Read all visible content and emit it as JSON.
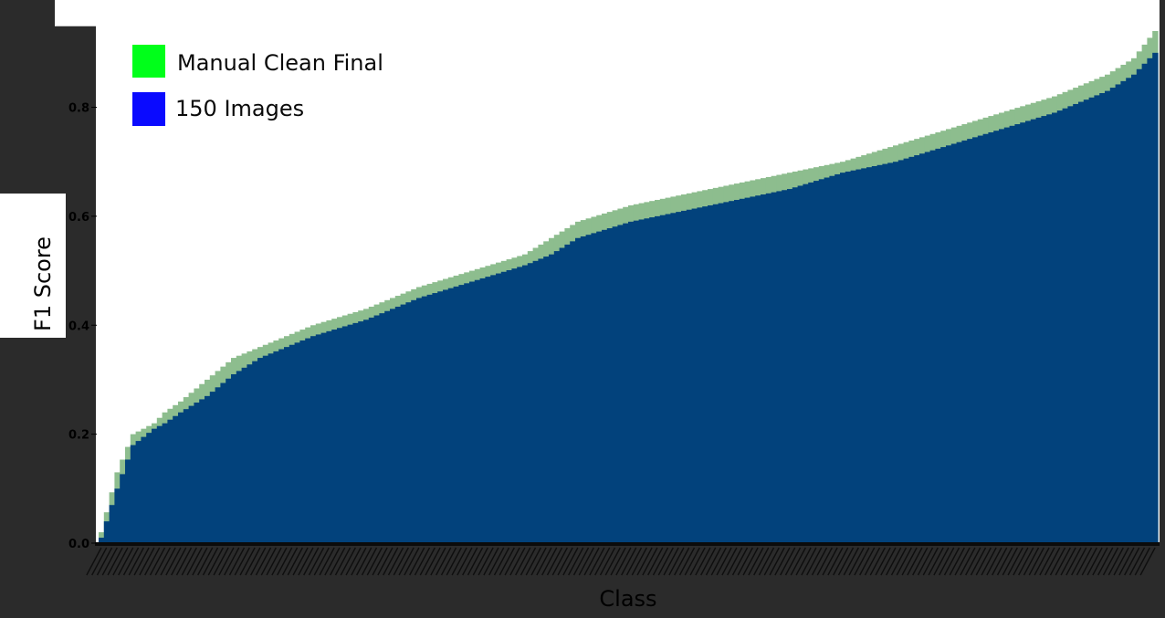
{
  "chart_data": {
    "type": "bar",
    "title": "",
    "xlabel": "Class",
    "ylabel": "F1 Score",
    "ylim": [
      0,
      0.95
    ],
    "yticks": [
      0.0,
      0.2,
      0.4,
      0.6,
      0.8
    ],
    "ytick_labels": [
      "0.0",
      "0.2",
      "0.4",
      "0.6",
      "0.8"
    ],
    "grid": false,
    "legend_position": "top-left",
    "bar_count": 200,
    "series": [
      {
        "name": "Manual Clean Final",
        "color": "#00ff1a",
        "render_color": "#8dbd8e",
        "anchors": [
          [
            0,
            0.02
          ],
          [
            3,
            0.13
          ],
          [
            6,
            0.2
          ],
          [
            10,
            0.22
          ],
          [
            12,
            0.24
          ],
          [
            15,
            0.26
          ],
          [
            20,
            0.3
          ],
          [
            25,
            0.34
          ],
          [
            30,
            0.36
          ],
          [
            40,
            0.4
          ],
          [
            50,
            0.43
          ],
          [
            60,
            0.47
          ],
          [
            70,
            0.5
          ],
          [
            80,
            0.53
          ],
          [
            85,
            0.56
          ],
          [
            90,
            0.59
          ],
          [
            100,
            0.62
          ],
          [
            110,
            0.64
          ],
          [
            120,
            0.66
          ],
          [
            130,
            0.68
          ],
          [
            140,
            0.7
          ],
          [
            150,
            0.73
          ],
          [
            160,
            0.76
          ],
          [
            170,
            0.79
          ],
          [
            180,
            0.82
          ],
          [
            190,
            0.86
          ],
          [
            195,
            0.89
          ],
          [
            199,
            0.94
          ]
        ]
      },
      {
        "name": "150 Images",
        "color": "#0a0aff",
        "render_color": "#02427c",
        "anchors": [
          [
            0,
            0.01
          ],
          [
            3,
            0.1
          ],
          [
            6,
            0.18
          ],
          [
            10,
            0.21
          ],
          [
            12,
            0.22
          ],
          [
            15,
            0.24
          ],
          [
            20,
            0.27
          ],
          [
            25,
            0.31
          ],
          [
            30,
            0.34
          ],
          [
            40,
            0.38
          ],
          [
            50,
            0.41
          ],
          [
            60,
            0.45
          ],
          [
            70,
            0.48
          ],
          [
            80,
            0.51
          ],
          [
            85,
            0.53
          ],
          [
            90,
            0.56
          ],
          [
            100,
            0.59
          ],
          [
            110,
            0.61
          ],
          [
            120,
            0.63
          ],
          [
            130,
            0.65
          ],
          [
            140,
            0.68
          ],
          [
            150,
            0.7
          ],
          [
            160,
            0.73
          ],
          [
            170,
            0.76
          ],
          [
            180,
            0.79
          ],
          [
            190,
            0.83
          ],
          [
            195,
            0.86
          ],
          [
            199,
            0.9
          ]
        ]
      }
    ]
  }
}
